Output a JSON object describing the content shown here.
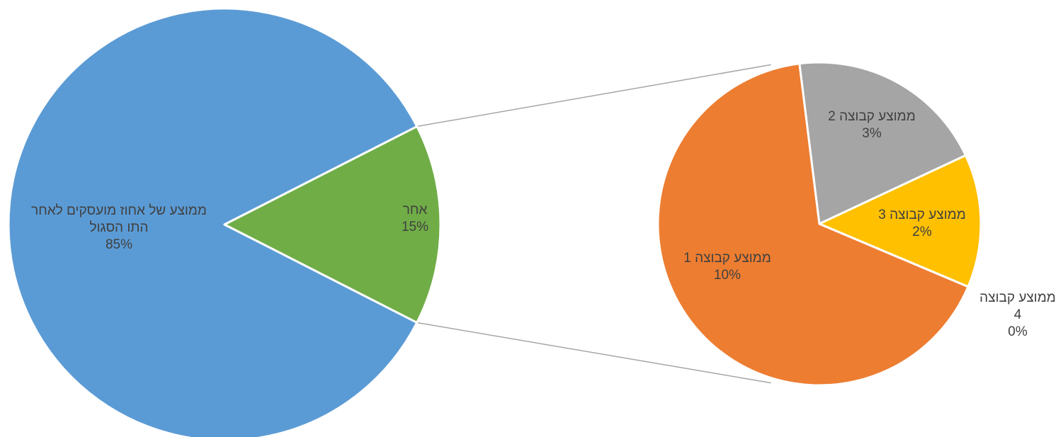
{
  "chart_data": {
    "type": "pie-of-pie",
    "title": "",
    "main_pie": {
      "slices": [
        {
          "name": "ממוצע של אחוז מועסקים לאחר התו הסגול",
          "label_lines": [
            "ממוצע של אחוז מועסקים לאחר",
            "התו הסגול"
          ],
          "value": 85,
          "value_label": "85%",
          "color": "#5b9bd5"
        },
        {
          "name": "אחר",
          "label_lines": [
            "אחר"
          ],
          "value": 15,
          "value_label": "15%",
          "color": "#70ad47"
        }
      ]
    },
    "secondary_pie": {
      "slices": [
        {
          "name": "ממוצע קבוצה 1",
          "label_lines": [
            "ממוצע קבוצה 1"
          ],
          "value": 10,
          "value_label": "10%",
          "color": "#ed7d31"
        },
        {
          "name": "ממוצע קבוצה 2",
          "label_lines": [
            "ממוצע קבוצה 2"
          ],
          "value": 3,
          "value_label": "3%",
          "color": "#a5a5a5"
        },
        {
          "name": "ממוצע קבוצה 3",
          "label_lines": [
            "ממוצע קבוצה 3"
          ],
          "value": 2,
          "value_label": "2%",
          "color": "#ffc000"
        },
        {
          "name": "ממוצע קבוצה 4",
          "label_lines": [
            "ממוצע קבוצה",
            "4"
          ],
          "value": 0,
          "value_label": "0%",
          "color": "#4472c4"
        }
      ]
    },
    "legend": "none"
  }
}
